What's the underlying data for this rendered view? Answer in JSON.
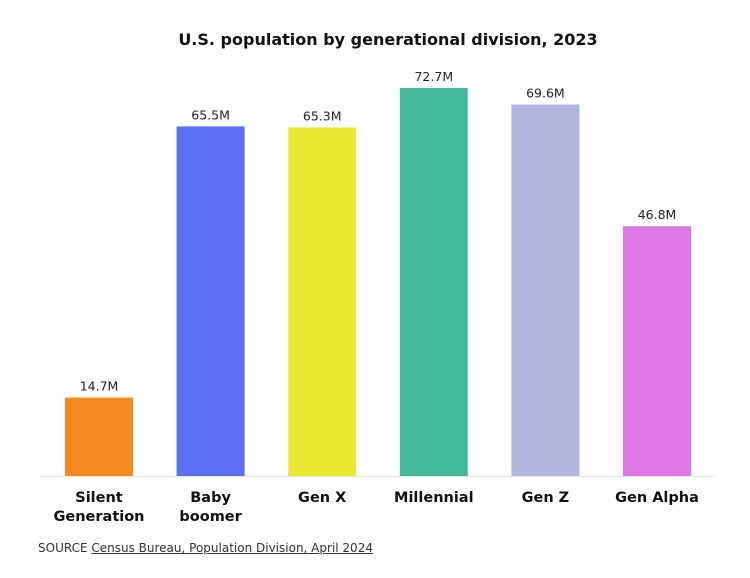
{
  "chart_data": {
    "type": "bar",
    "title": "U.S. population by generational division, 2023",
    "categories": [
      [
        "Silent",
        "Generation"
      ],
      [
        "Baby",
        "boomer"
      ],
      [
        "Gen X"
      ],
      [
        "Millennial"
      ],
      [
        "Gen Z"
      ],
      [
        "Gen Alpha"
      ]
    ],
    "values": [
      14.7,
      65.5,
      65.3,
      72.7,
      69.6,
      46.8
    ],
    "data_labels": [
      "14.7M",
      "65.5M",
      "65.3M",
      "72.7M",
      "69.6M",
      "46.8M"
    ],
    "colors": [
      "#f68a1f",
      "#5b6ff5",
      "#e8e830",
      "#41b89a",
      "#b0b6df",
      "#dc77e3"
    ],
    "unit": "M",
    "xlabel": "",
    "ylabel": "",
    "ylim": [
      0,
      72.7
    ],
    "grid": false
  },
  "source": {
    "label": "SOURCE",
    "link": "Census Bureau, Population Division, April 2024"
  }
}
